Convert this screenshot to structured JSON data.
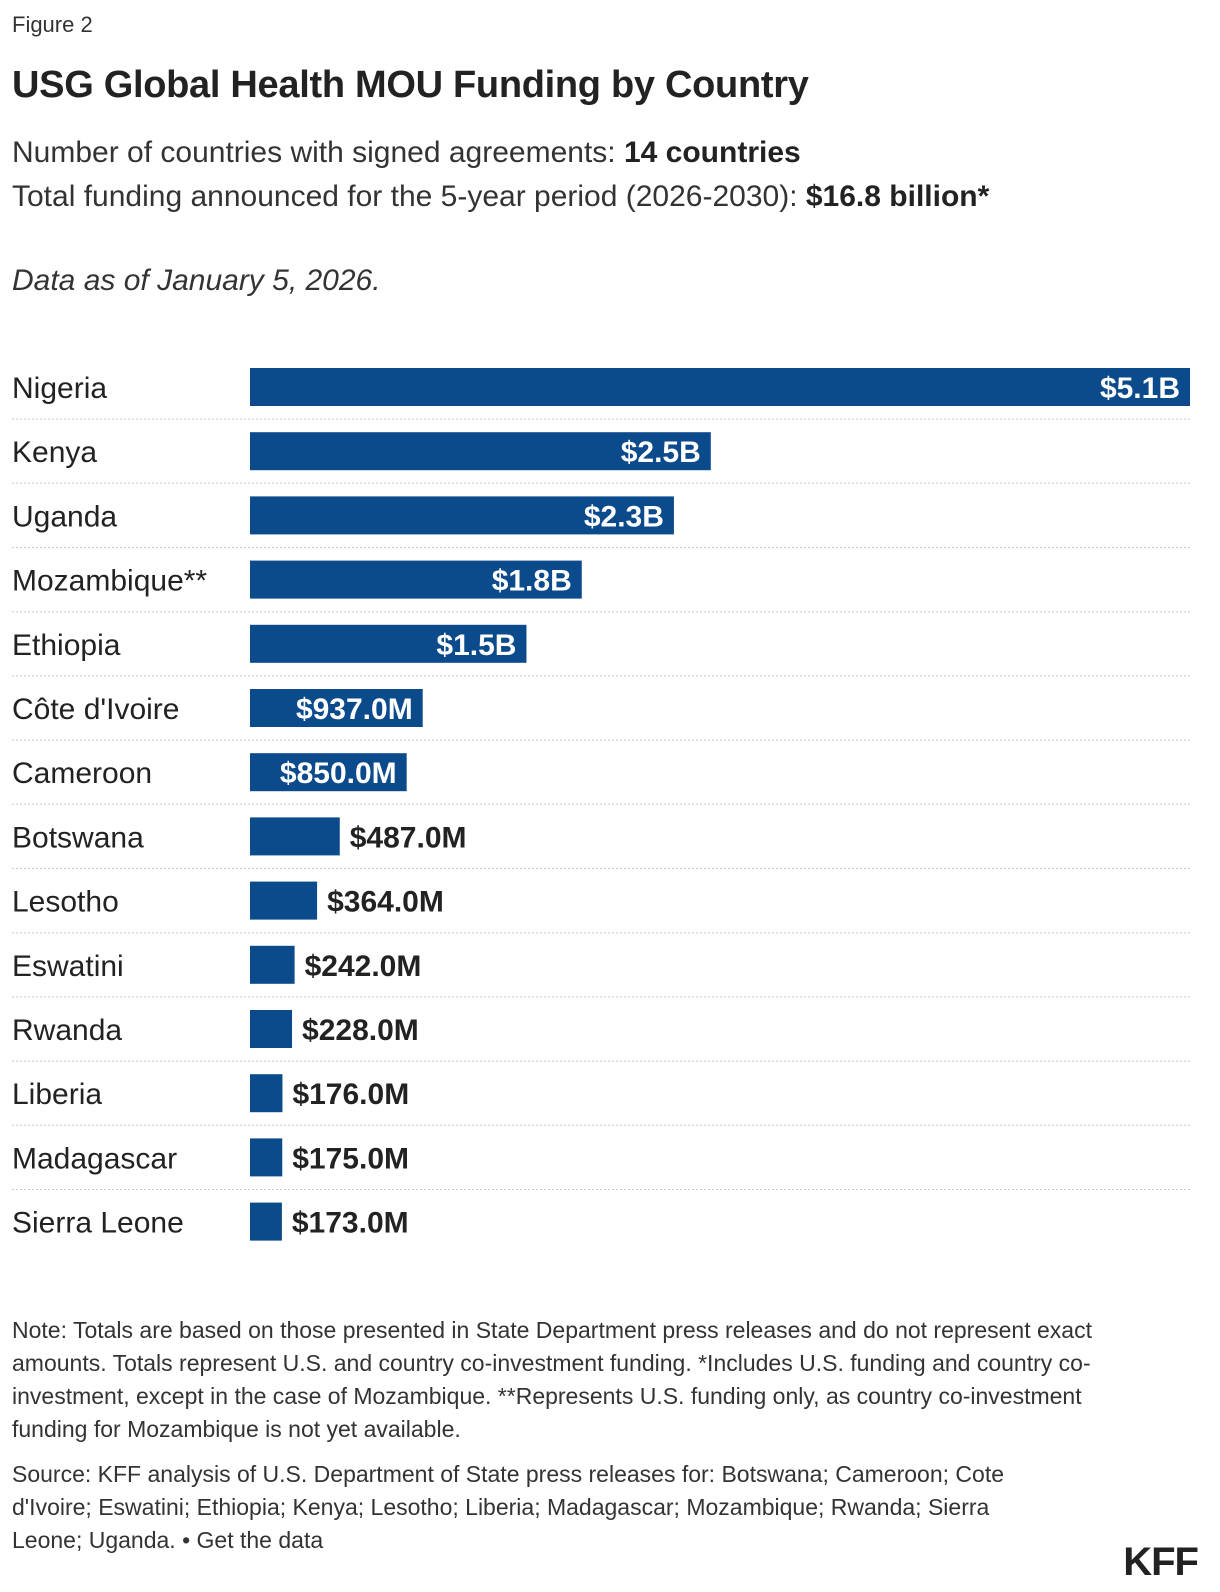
{
  "figure_label": "Figure 2",
  "title": "USG Global Health MOU Funding by Country",
  "subtitle": {
    "line1_prefix": "Number of countries with signed agreements: ",
    "line1_value": "14 countries",
    "line2_prefix": "Total funding announced for the 5-year period (2026-2030): ",
    "line2_value": "$16.8 billion*"
  },
  "data_as_of": "Data as of January 5, 2026.",
  "chart_data": {
    "type": "bar",
    "orientation": "horizontal",
    "categories": [
      "Nigeria",
      "Kenya",
      "Uganda",
      "Mozambique**",
      "Ethiopia",
      "Côte d'Ivoire",
      "Cameroon",
      "Botswana",
      "Lesotho",
      "Eswatini",
      "Rwanda",
      "Liberia",
      "Madagascar",
      "Sierra Leone"
    ],
    "values": [
      5100,
      2500,
      2300,
      1800,
      1500,
      937,
      850,
      487,
      364,
      242,
      228,
      176,
      175,
      173
    ],
    "value_unit": "millions of US dollars",
    "data_labels": [
      "$5.1B",
      "$2.5B",
      "$2.3B",
      "$1.8B",
      "$1.5B",
      "$937.0M",
      "$850.0M",
      "$487.0M",
      "$364.0M",
      "$242.0M",
      "$228.0M",
      "$176.0M",
      "$175.0M",
      "$173.0M"
    ],
    "xlim": [
      0,
      5100
    ],
    "bar_color": "#0b4a8b",
    "label_color_inside": "#ffffff",
    "label_color_outside": "#222222",
    "grid": false,
    "legend": "none"
  },
  "note": "Note: Totals are based on those presented in State Department press releases and do not represent exact amounts. Totals represent U.S. and country co-investment funding. *Includes U.S. funding and country co-investment, except in the case of Mozambique. **Represents U.S. funding only, as country co-investment funding for Mozambique is not yet available.",
  "source": "Source: KFF analysis of U.S. Department of State press releases for: Botswana; Cameroon; Cote d'Ivoire; Eswatini; Ethiopia; Kenya; Lesotho; Liberia; Madagascar; Mozambique; Rwanda; Sierra Leone; Uganda. •",
  "get_data_link": "Get the data",
  "logo_text": "KFF"
}
